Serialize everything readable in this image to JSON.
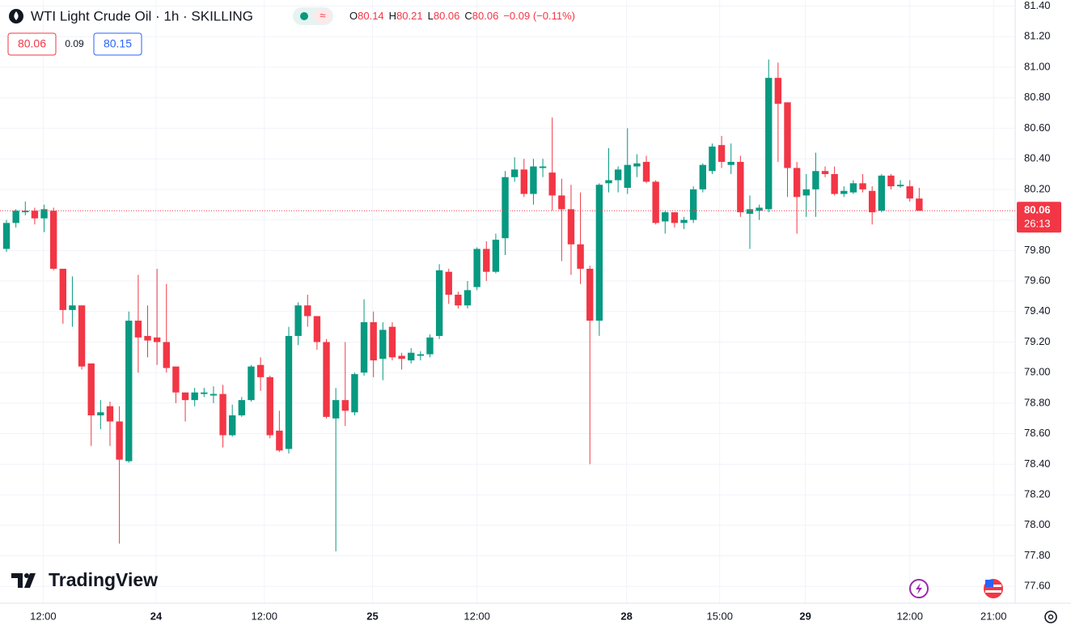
{
  "header": {
    "title": "WTI Light Crude Oil · 1h · SKILLING",
    "ohlc": [
      {
        "key": "O",
        "value": "80.14"
      },
      {
        "key": "H",
        "value": "80.21"
      },
      {
        "key": "L",
        "value": "80.06"
      },
      {
        "key": "C",
        "value": "80.06"
      }
    ],
    "change": "−0.09 (−0.11%)",
    "bid": "80.06",
    "spread": "0.09",
    "ask": "80.15"
  },
  "logo": "TradingView",
  "chart_data": {
    "type": "candlestick",
    "up_color": "#089981",
    "down_color": "#f23645",
    "open": [
      79.81,
      79.98,
      80.05,
      80.06,
      80.01,
      80.06,
      79.68,
      79.41,
      79.44,
      79.06,
      78.72,
      78.78,
      78.68,
      78.42,
      79.34,
      79.24,
      79.23,
      79.2,
      79.04,
      78.87,
      78.82,
      78.86,
      78.85,
      78.86,
      78.59,
      78.72,
      78.82,
      79.05,
      78.97,
      78.62,
      78.5,
      79.24,
      79.44,
      79.37,
      79.2,
      78.7,
      78.82,
      78.74,
      79.0,
      79.33,
      79.09,
      79.3,
      79.11,
      79.08,
      79.11,
      79.12,
      79.24,
      79.66,
      79.51,
      79.44,
      79.56,
      79.81,
      79.66,
      79.88,
      80.28,
      80.33,
      80.17,
      80.34,
      80.31,
      80.16,
      80.07,
      79.84,
      79.68,
      79.34,
      80.24,
      80.26,
      80.21,
      80.35,
      80.38,
      80.25,
      79.99,
      80.05,
      79.98,
      80.0,
      80.2,
      80.32,
      80.49,
      80.36,
      80.38,
      80.04,
      80.06,
      80.07,
      80.93,
      80.77,
      80.34,
      80.16,
      80.2,
      80.32,
      80.3,
      80.17,
      80.18,
      80.24,
      80.19,
      80.06,
      80.29,
      80.22,
      80.22,
      80.14
    ],
    "high": [
      80.0,
      80.07,
      80.12,
      80.08,
      80.1,
      80.08,
      79.68,
      79.63,
      79.44,
      79.06,
      78.82,
      78.81,
      78.78,
      79.4,
      79.64,
      79.44,
      79.68,
      79.58,
      79.04,
      78.87,
      78.9,
      78.9,
      78.91,
      78.92,
      78.79,
      78.84,
      79.05,
      79.1,
      78.98,
      78.75,
      79.3,
      79.46,
      79.51,
      79.37,
      79.22,
      78.9,
      79.2,
      79.0,
      79.48,
      79.4,
      79.33,
      79.33,
      79.13,
      79.16,
      79.14,
      79.25,
      79.71,
      79.68,
      79.53,
      79.6,
      79.82,
      79.86,
      79.91,
      80.32,
      80.41,
      80.4,
      80.4,
      80.4,
      80.67,
      80.27,
      80.23,
      80.18,
      79.7,
      80.24,
      80.47,
      80.35,
      80.6,
      80.43,
      80.42,
      80.26,
      80.06,
      80.05,
      80.02,
      80.22,
      80.37,
      80.5,
      80.55,
      80.5,
      80.42,
      80.16,
      80.1,
      81.05,
      81.03,
      80.77,
      80.38,
      80.3,
      80.44,
      80.35,
      80.35,
      80.22,
      80.26,
      80.3,
      80.22,
      80.3,
      80.3,
      80.26,
      80.26,
      80.21
    ],
    "low": [
      79.79,
      79.95,
      80.03,
      79.97,
      79.92,
      79.67,
      79.32,
      79.3,
      79.02,
      78.52,
      78.63,
      78.52,
      77.88,
      78.41,
      79.0,
      79.1,
      79.05,
      79.0,
      78.8,
      78.68,
      78.78,
      78.84,
      78.8,
      78.51,
      78.58,
      78.71,
      78.81,
      78.88,
      78.57,
      78.48,
      78.47,
      79.18,
      79.3,
      79.15,
      78.7,
      77.83,
      78.65,
      78.72,
      78.98,
      78.97,
      78.95,
      79.08,
      79.02,
      79.06,
      79.08,
      79.1,
      79.22,
      79.45,
      79.42,
      79.42,
      79.54,
      79.6,
      79.65,
      79.77,
      80.25,
      80.15,
      80.1,
      80.28,
      80.06,
      79.73,
      79.64,
      79.58,
      78.4,
      79.24,
      80.18,
      80.18,
      80.17,
      80.28,
      80.24,
      79.97,
      79.91,
      79.95,
      79.94,
      79.98,
      80.18,
      80.3,
      80.34,
      80.3,
      80.02,
      79.81,
      80.0,
      80.05,
      80.38,
      80.15,
      79.91,
      80.02,
      80.02,
      80.28,
      80.16,
      80.15,
      80.17,
      80.18,
      79.97,
      80.05,
      80.2,
      80.21,
      80.12,
      80.06
    ],
    "close": [
      79.98,
      80.06,
      80.06,
      80.01,
      80.07,
      79.68,
      79.41,
      79.44,
      79.04,
      78.72,
      78.74,
      78.68,
      78.43,
      79.34,
      79.23,
      79.21,
      79.2,
      79.03,
      78.87,
      78.82,
      78.87,
      78.87,
      78.86,
      78.59,
      78.72,
      78.82,
      79.04,
      78.97,
      78.59,
      78.49,
      79.24,
      79.44,
      79.37,
      79.2,
      78.71,
      78.82,
      78.75,
      78.99,
      79.33,
      79.08,
      79.28,
      79.1,
      79.09,
      79.13,
      79.12,
      79.23,
      79.67,
      79.51,
      79.44,
      79.54,
      79.81,
      79.66,
      79.87,
      80.28,
      80.33,
      80.17,
      80.35,
      80.35,
      80.16,
      80.07,
      79.84,
      79.68,
      79.34,
      80.23,
      80.26,
      80.33,
      80.36,
      80.37,
      80.25,
      79.98,
      80.05,
      79.98,
      80.0,
      80.2,
      80.36,
      80.48,
      80.38,
      80.38,
      80.05,
      80.07,
      80.08,
      80.93,
      80.76,
      80.34,
      80.15,
      80.2,
      80.32,
      80.3,
      80.17,
      80.19,
      80.24,
      80.2,
      80.05,
      80.29,
      80.22,
      80.23,
      80.14,
      80.06
    ],
    "xlim": [
      -0.69,
      107.2
    ],
    "xticks": [
      {
        "value": 3.9,
        "label": "12:00"
      },
      {
        "value": 15.9,
        "label": "24"
      },
      {
        "value": 27.4,
        "label": "12:00"
      },
      {
        "value": 38.9,
        "label": "25"
      },
      {
        "value": 50.0,
        "label": "12:00"
      },
      {
        "value": 65.9,
        "label": "28"
      },
      {
        "value": 75.8,
        "label": "15:00"
      },
      {
        "value": 84.9,
        "label": "29"
      },
      {
        "value": 96.0,
        "label": "12:00"
      },
      {
        "value": 104.9,
        "label": "21:00"
      }
    ],
    "ylim": [
      77.49,
      81.44
    ],
    "yticks": [
      {
        "value": 77.6,
        "label": "77.60"
      },
      {
        "value": 77.8,
        "label": "77.80"
      },
      {
        "value": 78.0,
        "label": "78.00"
      },
      {
        "value": 78.2,
        "label": "78.20"
      },
      {
        "value": 78.4,
        "label": "78.40"
      },
      {
        "value": 78.6,
        "label": "78.60"
      },
      {
        "value": 78.8,
        "label": "78.80"
      },
      {
        "value": 79.0,
        "label": "79.00"
      },
      {
        "value": 79.2,
        "label": "79.20"
      },
      {
        "value": 79.4,
        "label": "79.40"
      },
      {
        "value": 79.6,
        "label": "79.60"
      },
      {
        "value": 79.8,
        "label": "79.80"
      },
      {
        "value": 80.0,
        "label": "80.00"
      },
      {
        "value": 80.2,
        "label": "80.20"
      },
      {
        "value": 80.4,
        "label": "80.40"
      },
      {
        "value": 80.6,
        "label": "80.60"
      },
      {
        "value": 80.8,
        "label": "80.80"
      },
      {
        "value": 81.0,
        "label": "81.00"
      },
      {
        "value": 81.2,
        "label": "81.20"
      },
      {
        "value": 81.4,
        "label": "81.40"
      }
    ],
    "grid": true,
    "last_price": 80.06,
    "countdown": "26:13"
  }
}
